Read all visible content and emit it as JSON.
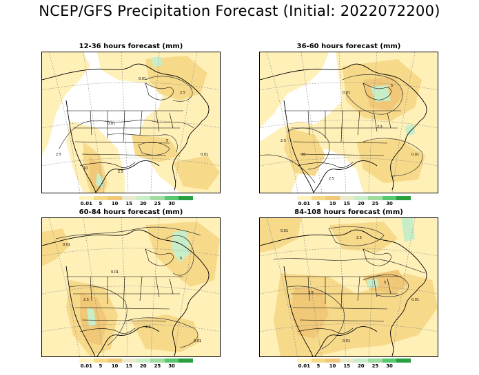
{
  "title": "NCEP/GFS Precipitation Forecast (Initial: 2022072200)",
  "units": "mm",
  "colors": {
    "0.01": "#fff0b8",
    "5": "#f7d98a",
    "10": "#f0c878",
    "15": "#e6e6c8",
    "20": "#c8eec8",
    "25": "#a0dca0",
    "30": "#58c870",
    "30+": "#28a040"
  },
  "colorbar": {
    "labels": [
      "0.01",
      "5",
      "10",
      "15",
      "20",
      "25",
      "30"
    ],
    "swatches": [
      "#fff3c0",
      "#f7d98a",
      "#f0c878",
      "#eaeaca",
      "#c8eec8",
      "#a0dca0",
      "#58c870",
      "#28a040"
    ]
  },
  "panels": [
    {
      "title": "12-36 hours forecast (mm)"
    },
    {
      "title": "36-60 hours forecast (mm)"
    },
    {
      "title": "60-84 hours forecast (mm)"
    },
    {
      "title": "84-108 hours forecast (mm)"
    }
  ],
  "contour_labels": [
    "0.01",
    "2.5",
    "5",
    "10"
  ]
}
